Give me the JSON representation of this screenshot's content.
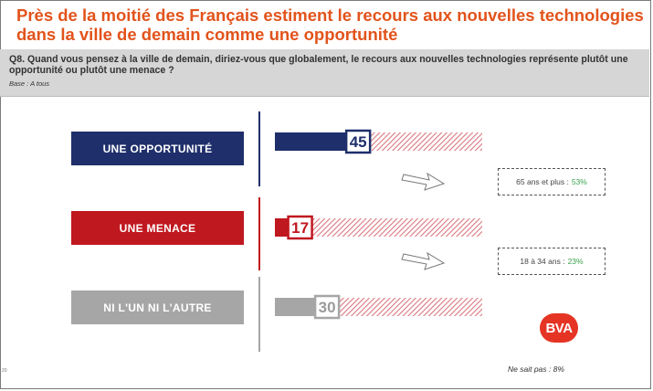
{
  "title": "Près de la moitié des Français estiment le recours aux nouvelles technologies dans la ville de demain comme une opportunité",
  "question": "Q8. Quand vous pensez à la ville de demain, diriez-vous que globalement, le recours aux nouvelles technologies représente plutôt une opportunité ou plutôt une menace ?",
  "base": "Base : A tous",
  "chart_data": {
    "type": "bar",
    "orientation": "horizontal",
    "unit": "%",
    "categories": [
      "UNE OPPORTUNITÉ",
      "UNE MENACE",
      "NI L'UN NI L'AUTRE"
    ],
    "values": [
      45,
      17,
      30
    ],
    "xlim": [
      0,
      100
    ],
    "colors": [
      "#1f2f6b",
      "#c0181f",
      "#a6a6a6"
    ],
    "remainder_fill": "hatched",
    "remainder_color": "#d9787e"
  },
  "callouts": [
    {
      "label": "65 ans et plus :",
      "value": "53%"
    },
    {
      "label": "18 à 34 ans :",
      "value": "23%"
    }
  ],
  "logo_text": "BVA",
  "no_answer": "Ne sait pas : 8%",
  "page_number": "20"
}
